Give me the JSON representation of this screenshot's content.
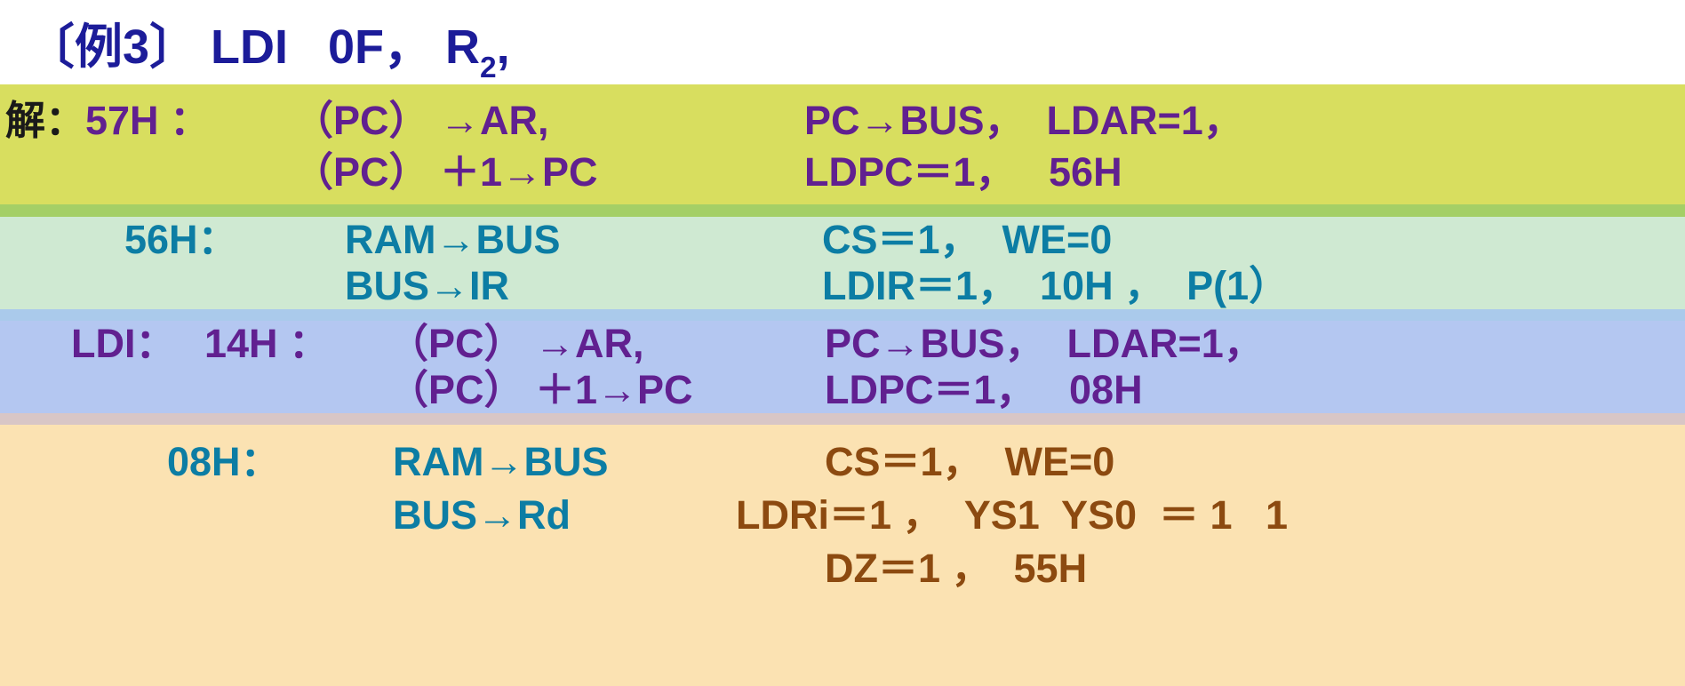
{
  "title": {
    "prefix": "〔例3〕 LDI   0F， R",
    "subscript": "2",
    "suffix": ","
  },
  "colors": {
    "title": "#1c1c99",
    "band1_bg": "#d8de5f",
    "band1_text": "#612090",
    "band1_label": "#1a1a1a",
    "divider1": "#a4cf66",
    "band2_bg": "#cfe9d2",
    "band2_text": "#0c7da4",
    "divider2": "#aacaeb",
    "band3_bg": "#b4c7f1",
    "band3_text": "#612090",
    "divider3": "#d8c6c6",
    "band4_bg": "#fbe2b2",
    "band4_text_left": "#0c7da4",
    "band4_text_right": "#8c4a10"
  },
  "bands": [
    {
      "prefix": "解：",
      "lines": [
        {
          "addr": "57H ：",
          "op": "（PC） →AR,",
          "ctrl": "PC→BUS，  LDAR=1，"
        },
        {
          "addr": "",
          "op": "（PC） ＋1→PC",
          "ctrl": "LDPC＝1，   56H"
        }
      ]
    },
    {
      "prefix": "",
      "lines": [
        {
          "addr": "56H：",
          "op": "RAM→BUS",
          "ctrl": "CS＝1，  WE=0"
        },
        {
          "addr": "",
          "op": "BUS→IR",
          "ctrl": "LDIR＝1，  10H ，  P(1）"
        }
      ]
    },
    {
      "prefix": "LDI：",
      "lines": [
        {
          "addr": "14H ：",
          "op": "（PC） →AR,",
          "ctrl": "PC→BUS，  LDAR=1，"
        },
        {
          "addr": "",
          "op": "（PC） ＋1→PC",
          "ctrl": "LDPC＝1，   08H"
        }
      ]
    },
    {
      "prefix": "",
      "lines": [
        {
          "addr": "08H：",
          "op": "RAM→BUS",
          "ctrl": "CS＝1，  WE=0"
        },
        {
          "addr": "",
          "op": "BUS→Rd",
          "ctrl": "LDRi＝1 ，  YS1  YS0  ＝ 1   1"
        },
        {
          "addr": "",
          "op": "",
          "ctrl": "DZ＝1 ，  55H"
        }
      ]
    }
  ]
}
